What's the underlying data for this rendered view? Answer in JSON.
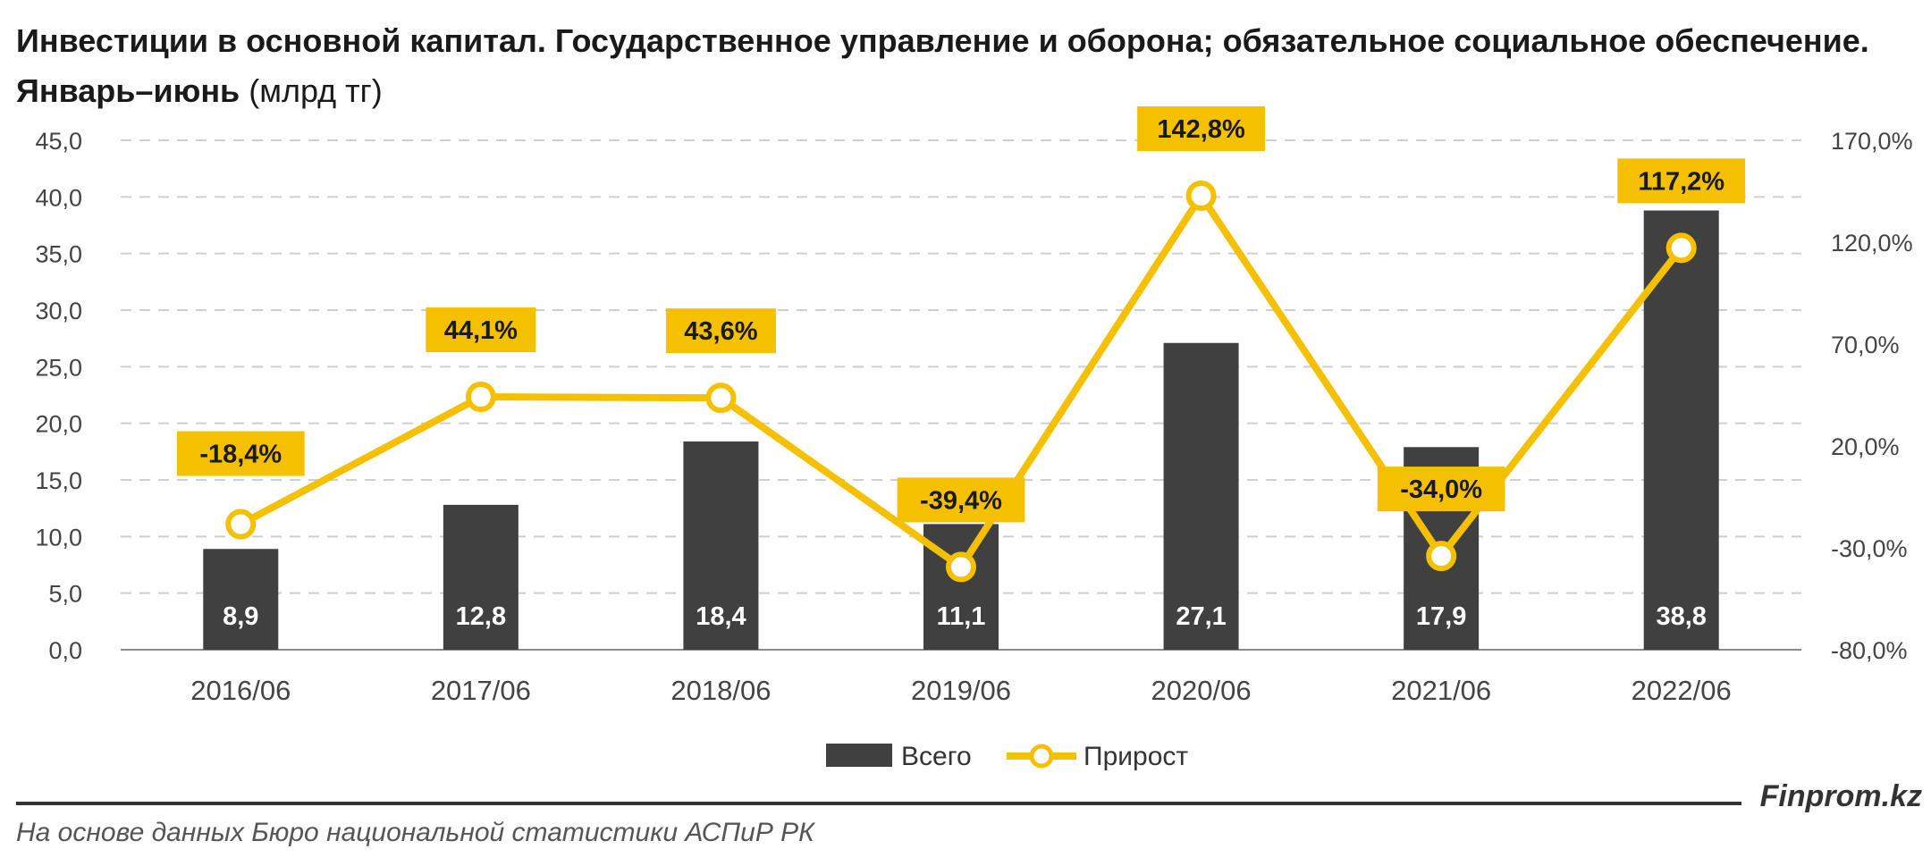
{
  "title_bold": "Инвестиции в основной капитал. Государственное управление и оборона; обязательное социальное обеспечение. Январь–июнь",
  "title_unit": "(млрд тг)",
  "brand": "Finprom.kz",
  "source": "На основе данных Бюро национальной статистики АСПиР РК",
  "colors": {
    "bar": "#404040",
    "line": "#F5C000",
    "label_box": "#F5C000",
    "grid": "#cfcfcf"
  },
  "chart_data": {
    "type": "bar",
    "categories": [
      "2016/06",
      "2017/06",
      "2018/06",
      "2019/06",
      "2020/06",
      "2021/06",
      "2022/06"
    ],
    "series": [
      {
        "name": "Всего",
        "type": "bar",
        "axis": "left",
        "values": [
          8.9,
          12.8,
          18.4,
          11.1,
          27.1,
          17.9,
          38.8
        ],
        "labels": [
          "8,9",
          "12,8",
          "18,4",
          "11,1",
          "27,1",
          "17,9",
          "38,8"
        ]
      },
      {
        "name": "Прирост",
        "type": "line",
        "axis": "right",
        "values": [
          -18.4,
          44.1,
          43.6,
          -39.4,
          142.8,
          -34.0,
          117.2
        ],
        "labels": [
          "-18,4%",
          "44,1%",
          "43,6%",
          "-39,4%",
          "142,8%",
          "-34,0%",
          "117,2%"
        ]
      }
    ],
    "y_left": {
      "min": 0,
      "max": 45,
      "step": 5,
      "ticks": [
        "0,0",
        "5,0",
        "10,0",
        "15,0",
        "20,0",
        "25,0",
        "30,0",
        "35,0",
        "40,0",
        "45,0"
      ]
    },
    "y_right": {
      "min": -80,
      "max": 170,
      "step": 50,
      "ticks": [
        "-80,0%",
        "-30,0%",
        "20,0%",
        "70,0%",
        "120,0%",
        "170,0%"
      ]
    },
    "grid": true,
    "legend": "bottom"
  }
}
